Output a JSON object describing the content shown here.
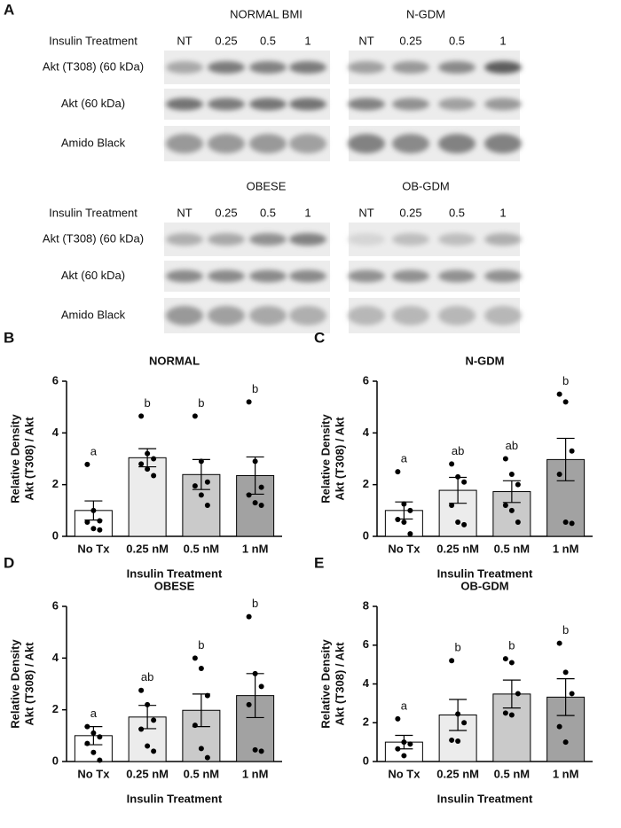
{
  "blots": {
    "panel_label": "A",
    "rows": [
      {
        "groups": [
          "NORMAL BMI",
          "N-GDM"
        ],
        "labels": [
          "Insulin Treatment",
          "Akt (T308) (60 kDa)",
          "Akt (60 kDa)",
          "Amido Black"
        ],
        "lanes": [
          "NT",
          "0.25",
          "0.5",
          "1",
          "NT",
          "0.25",
          "0.5",
          "1"
        ]
      },
      {
        "groups": [
          "OBESE",
          "OB-GDM"
        ],
        "labels": [
          "Insulin Treatment",
          "Akt (T308) (60 kDa)",
          "Akt (60 kDa)",
          "Amido Black"
        ],
        "lanes": [
          "NT",
          "0.25",
          "0.5",
          "1",
          "NT",
          "0.25",
          "0.5",
          "1"
        ]
      }
    ]
  },
  "chart_data": [
    {
      "type": "bar",
      "panel_label": "B",
      "title": "NORMAL",
      "x_label": "Insulin Treatment",
      "y_label": [
        "Relative Density",
        "Akt (T308) / Akt"
      ],
      "categories": [
        "No Tx",
        "0.25 nM",
        "0.5 nM",
        "1 nM"
      ],
      "colors": [
        "#ffffff",
        "#ececec",
        "#cacaca",
        "#a2a2a2"
      ],
      "values": [
        1.0,
        3.04,
        2.39,
        2.35
      ],
      "errors": [
        0.37,
        0.35,
        0.58,
        0.72
      ],
      "points": [
        [
          2.78,
          1.0,
          0.6,
          0.55,
          0.3,
          0.25
        ],
        [
          4.65,
          3.2,
          3.0,
          2.8,
          2.6,
          2.35
        ],
        [
          4.65,
          2.9,
          2.1,
          1.95,
          1.6,
          1.2
        ],
        [
          5.2,
          2.9,
          1.9,
          1.6,
          1.3,
          1.2
        ]
      ],
      "annotations": [
        "a",
        "b",
        "b",
        "b"
      ],
      "ylim": [
        0,
        6
      ],
      "yticks": [
        0,
        2,
        4,
        6
      ]
    },
    {
      "type": "bar",
      "panel_label": "C",
      "title": "N-GDM",
      "x_label": "Insulin Treatment",
      "y_label": [
        "Relative Density",
        "Akt (T308) / Akt"
      ],
      "categories": [
        "No Tx",
        "0.25 nM",
        "0.5 nM",
        "1 nM"
      ],
      "colors": [
        "#ffffff",
        "#ececec",
        "#cacaca",
        "#a2a2a2"
      ],
      "values": [
        1.0,
        1.78,
        1.73,
        2.97
      ],
      "errors": [
        0.33,
        0.5,
        0.42,
        0.82
      ],
      "points": [
        [
          2.5,
          1.25,
          1.0,
          0.65,
          0.55,
          0.1
        ],
        [
          2.8,
          2.3,
          2.1,
          1.2,
          0.55,
          0.45
        ],
        [
          3.0,
          2.4,
          2.0,
          1.2,
          1.0,
          0.55
        ],
        [
          5.5,
          5.2,
          3.3,
          2.4,
          0.55,
          0.5
        ]
      ],
      "annotations": [
        "a",
        "ab",
        "ab",
        "b"
      ],
      "ylim": [
        0,
        6
      ],
      "yticks": [
        0,
        2,
        4,
        6
      ]
    },
    {
      "type": "bar",
      "panel_label": "D",
      "title": "OBESE",
      "x_label": "Insulin Treatment",
      "y_label": [
        "Relative Density",
        "Akt (T308) / Akt"
      ],
      "categories": [
        "No Tx",
        "0.25 nM",
        "0.5 nM",
        "1 nM"
      ],
      "colors": [
        "#ffffff",
        "#ececec",
        "#cacaca",
        "#a2a2a2"
      ],
      "values": [
        1.0,
        1.72,
        1.98,
        2.55
      ],
      "errors": [
        0.35,
        0.45,
        0.63,
        0.85
      ],
      "points": [
        [
          1.35,
          1.1,
          0.95,
          0.7,
          0.35,
          0.05
        ],
        [
          2.75,
          2.2,
          1.6,
          1.25,
          0.6,
          0.4
        ],
        [
          4.0,
          3.6,
          2.55,
          1.4,
          0.5,
          0.15
        ],
        [
          5.6,
          3.4,
          2.9,
          2.2,
          0.45,
          0.4
        ]
      ],
      "annotations": [
        "a",
        "ab",
        "b",
        "b"
      ],
      "ylim": [
        0,
        6
      ],
      "yticks": [
        0,
        2,
        4,
        6
      ]
    },
    {
      "type": "bar",
      "panel_label": "E",
      "title": "OB-GDM",
      "x_label": "Insulin Treatment",
      "y_label": [
        "Relative Density",
        "Akt (T308) / Akt"
      ],
      "categories": [
        "No Tx",
        "0.25 nM",
        "0.5 nM",
        "1 nM"
      ],
      "colors": [
        "#ffffff",
        "#ececec",
        "#cacaca",
        "#a2a2a2"
      ],
      "values": [
        1.0,
        2.4,
        3.48,
        3.32
      ],
      "errors": [
        0.35,
        0.8,
        0.72,
        0.95
      ],
      "points": [
        [
          2.2,
          1.0,
          0.9,
          0.65,
          0.3
        ],
        [
          5.2,
          2.45,
          2.0,
          1.1,
          1.05
        ],
        [
          5.3,
          5.1,
          3.5,
          2.5,
          2.4
        ],
        [
          6.1,
          4.6,
          3.5,
          1.8,
          1.0
        ]
      ],
      "annotations": [
        "a",
        "b",
        "b",
        "b"
      ],
      "ylim": [
        0,
        8
      ],
      "yticks": [
        0,
        2,
        4,
        6,
        8
      ]
    }
  ]
}
